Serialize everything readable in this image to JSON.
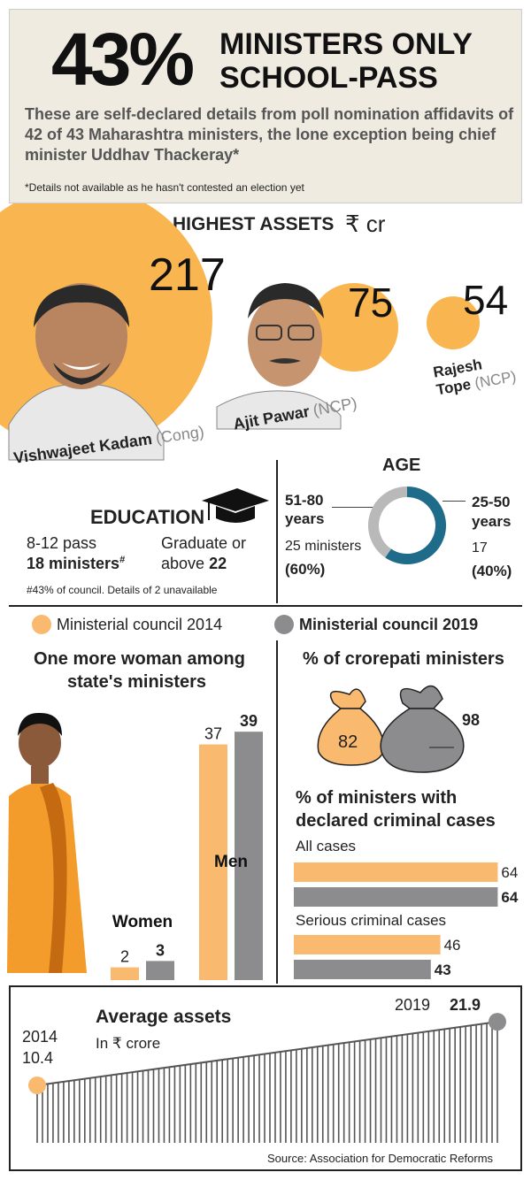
{
  "header": {
    "big_pct": "43%",
    "title_line1": "MINISTERS ONLY",
    "title_line2": "SCHOOL-PASS",
    "subtitle": "These are self-declared details from poll nomination affidavits of 42 of 43 Maharashtra ministers, the lone exception being chief minister Uddhav Thackeray*",
    "footnote": "*Details not available as he hasn't contested an election yet"
  },
  "assets": {
    "title": "HIGHEST ASSETS",
    "unit": "₹ cr",
    "people": [
      {
        "name": "Vishwajeet Kadam",
        "party": "(Cong)",
        "value": 217
      },
      {
        "name": "Ajit Pawar",
        "party": "(NCP)",
        "value": 75
      },
      {
        "name_line1": "Rajesh",
        "name_line2": "Tope",
        "party": "(NCP)",
        "value": 54
      }
    ]
  },
  "education": {
    "title": "EDUCATION",
    "left_label": "8-12 pass",
    "left_value": "18 ministers",
    "left_sup": "#",
    "right_label": "Graduate or",
    "right_label2": "above",
    "right_value": "22",
    "footnote": "#43% of council. Details of 2 unavailable"
  },
  "age": {
    "title": "AGE",
    "groups": [
      {
        "label_line1": "51-80",
        "label_line2": "years",
        "count_text": "25 ministers",
        "pct_text": "(60%)",
        "value": 25,
        "color": "#1f6b8a"
      },
      {
        "label_line1": "25-50",
        "label_line2": "years",
        "count_text": "17",
        "pct_text": "(40%)",
        "value": 17,
        "color": "#b9b9b9"
      }
    ]
  },
  "legend": {
    "item1": "Ministerial council 2014",
    "item2": "Ministerial council 2019",
    "color_2014": "#f9b96e",
    "color_2019": "#8c8c8f"
  },
  "women": {
    "title_line1": "One more woman among",
    "title_line2": "state's ministers"
  },
  "crorepati": {
    "title": "% of crorepati ministers",
    "v2014": "82",
    "v2019": "98"
  },
  "criminal": {
    "title_line1": "% of ministers with",
    "title_line2": "declared criminal cases",
    "all_label": "All cases",
    "serious_label": "Serious criminal cases"
  },
  "avg": {
    "title": "Average assets",
    "unit": "In ₹ crore",
    "start_year": "2014",
    "start_value": "10.4",
    "end_year": "2019",
    "end_value": "21.9",
    "source": "Source: Association for Democratic Reforms"
  },
  "chart_data": [
    {
      "type": "bar",
      "title": "One more woman among state's ministers",
      "categories": [
        "Women",
        "Men"
      ],
      "series": [
        {
          "name": "Ministerial council 2014",
          "values": [
            2,
            37
          ]
        },
        {
          "name": "Ministerial council 2019",
          "values": [
            3,
            39
          ]
        }
      ]
    },
    {
      "type": "bar",
      "title": "% of crorepati ministers",
      "categories": [
        ""
      ],
      "series": [
        {
          "name": "Ministerial council 2014",
          "values": [
            82
          ]
        },
        {
          "name": "Ministerial council 2019",
          "values": [
            98
          ]
        }
      ]
    },
    {
      "type": "bar",
      "title": "% of ministers with declared criminal cases",
      "categories": [
        "All cases",
        "Serious criminal cases"
      ],
      "series": [
        {
          "name": "Ministerial council 2014",
          "values": [
            64,
            46
          ]
        },
        {
          "name": "Ministerial council 2019",
          "values": [
            64,
            43
          ]
        }
      ]
    },
    {
      "type": "area",
      "title": "Average assets",
      "ylabel": "In ₹ crore",
      "x": [
        "2014",
        "2019"
      ],
      "values": [
        10.4,
        21.9
      ]
    },
    {
      "type": "pie",
      "title": "AGE",
      "categories": [
        "51-80 years",
        "25-50 years"
      ],
      "values": [
        25,
        17
      ]
    }
  ]
}
